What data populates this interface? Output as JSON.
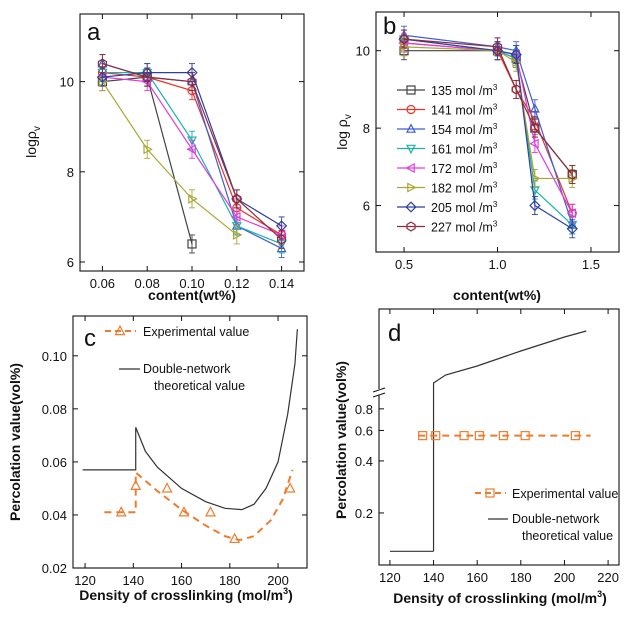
{
  "chart_data": [
    {
      "panel": "a",
      "type": "line",
      "ylabel_main": "logρ",
      "ylabel_sub": "v",
      "xlabel": "content(wt%)",
      "xlim": [
        0.05,
        0.15
      ],
      "ylim": [
        5.8,
        11.5
      ],
      "xticks": [
        "0.06",
        "0.08",
        "0.10",
        "0.12",
        "0.14"
      ],
      "xtick_values": [
        0.06,
        0.08,
        0.1,
        0.12,
        0.14
      ],
      "yticks": [
        "6",
        "8",
        "10"
      ],
      "ytick_values": [
        6,
        8,
        10
      ],
      "x": [
        0.06,
        0.08,
        0.1,
        0.12,
        0.14
      ],
      "series": [
        {
          "name": "135 mol/m3",
          "color": "#444444",
          "marker": "square",
          "values": [
            10.0,
            10.1,
            6.4,
            null,
            null
          ]
        },
        {
          "name": "141 mol/m3",
          "color": "#e8332a",
          "marker": "circle",
          "values": [
            10.2,
            10.1,
            9.8,
            7.2,
            6.6
          ]
        },
        {
          "name": "154 mol/m3",
          "color": "#3f5ed6",
          "marker": "triangle-up",
          "values": [
            10.4,
            10.1,
            10.0,
            6.8,
            6.3
          ]
        },
        {
          "name": "161 mol/m3",
          "color": "#19b3a8",
          "marker": "triangle-down",
          "values": [
            10.2,
            10.2,
            8.7,
            6.8,
            6.4
          ]
        },
        {
          "name": "172 mol/m3",
          "color": "#e13ae0",
          "marker": "triangle-left",
          "values": [
            10.1,
            10.0,
            8.5,
            7.0,
            6.6
          ]
        },
        {
          "name": "182 mol/m3",
          "color": "#a9a736",
          "marker": "triangle-right",
          "values": [
            10.0,
            8.5,
            7.4,
            6.6,
            null
          ]
        },
        {
          "name": "205 mol/m3",
          "color": "#2f3fa0",
          "marker": "diamond",
          "values": [
            10.1,
            10.2,
            10.2,
            7.4,
            6.8
          ]
        },
        {
          "name": "227 mol/m3",
          "color": "#8c2c3c",
          "marker": "hexagon",
          "values": [
            10.4,
            10.1,
            10.0,
            7.4,
            6.5
          ]
        }
      ]
    },
    {
      "panel": "b",
      "type": "line",
      "ylabel_main": "log ρ",
      "ylabel_sub": "v",
      "xlabel": "content(wt%)",
      "xlim": [
        0.35,
        1.65
      ],
      "ylim": [
        4.8,
        11.0
      ],
      "xticks": [
        "0.5",
        "1.0",
        "1.5"
      ],
      "xtick_values": [
        0.5,
        1.0,
        1.5
      ],
      "yticks": [
        "6",
        "8",
        "10"
      ],
      "ytick_values": [
        6,
        8,
        10
      ],
      "x": [
        0.5,
        1.0,
        1.1,
        1.2,
        1.4
      ],
      "legend": [
        {
          "text": "135 mol /m",
          "sup": "3",
          "color": "#444444",
          "marker": "square"
        },
        {
          "text": "141 mol /m",
          "sup": "3",
          "color": "#e8332a",
          "marker": "circle"
        },
        {
          "text": "154 mol /m",
          "sup": "3",
          "color": "#3f5ed6",
          "marker": "triangle-up"
        },
        {
          "text": "161 mol /m",
          "sup": "3",
          "color": "#19b3a8",
          "marker": "triangle-down"
        },
        {
          "text": "172 mol /m",
          "sup": "3",
          "color": "#e13ae0",
          "marker": "triangle-left"
        },
        {
          "text": "182 mol /m",
          "sup": "3",
          "color": "#a9a736",
          "marker": "triangle-right"
        },
        {
          "text": "205 mol /m",
          "sup": "3",
          "color": "#2f3fa0",
          "marker": "diamond"
        },
        {
          "text": "227 mol /m",
          "sup": "3",
          "color": "#8c2c3c",
          "marker": "hexagon"
        }
      ],
      "series": [
        {
          "name": "135 mol/m3",
          "color": "#444444",
          "marker": "square",
          "values": [
            10.0,
            10.0,
            9.8,
            8.0,
            6.8
          ]
        },
        {
          "name": "141 mol/m3",
          "color": "#e8332a",
          "marker": "circle",
          "values": [
            10.2,
            10.0,
            9.0,
            8.2,
            5.8
          ]
        },
        {
          "name": "154 mol/m3",
          "color": "#3f5ed6",
          "marker": "triangle-up",
          "values": [
            10.4,
            10.1,
            10.0,
            8.5,
            5.5
          ]
        },
        {
          "name": "161 mol/m3",
          "color": "#19b3a8",
          "marker": "triangle-down",
          "values": [
            10.3,
            10.0,
            9.8,
            6.4,
            5.5
          ]
        },
        {
          "name": "172 mol/m3",
          "color": "#e13ae0",
          "marker": "triangle-left",
          "values": [
            10.2,
            10.0,
            9.9,
            7.6,
            5.8
          ]
        },
        {
          "name": "182 mol/m3",
          "color": "#a9a736",
          "marker": "triangle-right",
          "values": [
            10.1,
            10.0,
            9.7,
            6.7,
            6.7
          ]
        },
        {
          "name": "205 mol/m3",
          "color": "#2f3fa0",
          "marker": "diamond",
          "values": [
            10.3,
            10.0,
            9.9,
            6.0,
            5.4
          ]
        },
        {
          "name": "227 mol/m3",
          "color": "#8c2c3c",
          "marker": "hexagon",
          "values": [
            10.3,
            10.1,
            9.0,
            8.0,
            6.8
          ]
        }
      ]
    },
    {
      "panel": "c",
      "type": "line",
      "ylabel": "Percolation value(vol%)",
      "xlabel": "Density of crosslinking (mol/m",
      "xlabel_sup": "3",
      "xlabel_end": ")",
      "xlim": [
        115,
        212
      ],
      "ylim": [
        0.02,
        0.115
      ],
      "xticks": [
        "120",
        "140",
        "160",
        "180",
        "200"
      ],
      "xtick_values": [
        120,
        140,
        160,
        180,
        200
      ],
      "yticks": [
        "0.02",
        "0.04",
        "0.06",
        "0.08",
        "0.10"
      ],
      "ytick_values": [
        0.02,
        0.04,
        0.06,
        0.08,
        0.1
      ],
      "legend": [
        {
          "text": "Experimental value",
          "style": "dashed-triangle",
          "color": "#ee7c2f"
        },
        {
          "text": "Double-network",
          "text2": "theoretical value",
          "style": "solid",
          "color": "#333333"
        }
      ],
      "series": [
        {
          "name": "Experimental value",
          "color": "#ee7c2f",
          "style": "dashed",
          "marker": "triangle-up",
          "x": [
            135,
            141,
            154,
            161,
            172,
            182,
            205
          ],
          "values": [
            0.041,
            0.051,
            0.05,
            0.041,
            0.041,
            0.031,
            0.05
          ],
          "curve": [
            [
              128,
              0.041
            ],
            [
              141,
              0.041
            ],
            [
              141,
              0.056
            ],
            [
              150,
              0.049
            ],
            [
              160,
              0.042
            ],
            [
              170,
              0.036
            ],
            [
              178,
              0.032
            ],
            [
              184,
              0.0305
            ],
            [
              190,
              0.032
            ],
            [
              197,
              0.038
            ],
            [
              202,
              0.046
            ],
            [
              206,
              0.057
            ]
          ]
        },
        {
          "name": "Double-network theoretical value",
          "color": "#333333",
          "style": "solid",
          "curve": [
            [
              119,
              0.057
            ],
            [
              141,
              0.057
            ],
            [
              141,
              0.073
            ],
            [
              145,
              0.064
            ],
            [
              150,
              0.058
            ],
            [
              160,
              0.05
            ],
            [
              170,
              0.045
            ],
            [
              178,
              0.0425
            ],
            [
              185,
              0.042
            ],
            [
              190,
              0.044
            ],
            [
              195,
              0.05
            ],
            [
              200,
              0.06
            ],
            [
              204,
              0.078
            ],
            [
              207,
              0.097
            ],
            [
              208,
              0.11
            ]
          ]
        }
      ]
    },
    {
      "panel": "d",
      "type": "line",
      "ylabel": "Percolation value(vol%)",
      "xlabel": "Density of crosslinking (mol/m",
      "xlabel_sup": "3",
      "xlabel_end": ")",
      "xlim": [
        115,
        225
      ],
      "yscale": "log with axis break above 0.9",
      "ylim": [
        0.1,
        0.9
      ],
      "xticks": [
        "120",
        "140",
        "160",
        "180",
        "200",
        "220"
      ],
      "xtick_values": [
        120,
        140,
        160,
        180,
        200,
        220
      ],
      "yticks": [
        "0.2",
        "0.4",
        "0.6",
        "0.8"
      ],
      "ytick_values": [
        0.2,
        0.4,
        0.6,
        0.8
      ],
      "legend": [
        {
          "text": "Experimental value",
          "style": "dashed-square",
          "color": "#ee7c2f"
        },
        {
          "text": "Double-network",
          "text2": "theoretical value",
          "style": "solid",
          "color": "#333333"
        }
      ],
      "series": [
        {
          "name": "Experimental value",
          "color": "#ee7c2f",
          "style": "dashed",
          "marker": "square",
          "x": [
            135,
            141,
            154,
            161,
            172,
            182,
            205
          ],
          "values": [
            0.56,
            0.56,
            0.56,
            0.56,
            0.56,
            0.56,
            0.56
          ],
          "curve_x": [
            133,
            212
          ]
        },
        {
          "name": "Double-network theoretical value",
          "color": "#333333",
          "style": "solid",
          "low_segment": [
            [
              120,
              0.12
            ],
            [
              140,
              0.12
            ]
          ],
          "jump_x": 140,
          "jump_to": 0.9,
          "note": "curve continues above the axis break, rising monotonically from 140 to 210 mol/m3 (value not labeled)"
        }
      ]
    }
  ]
}
